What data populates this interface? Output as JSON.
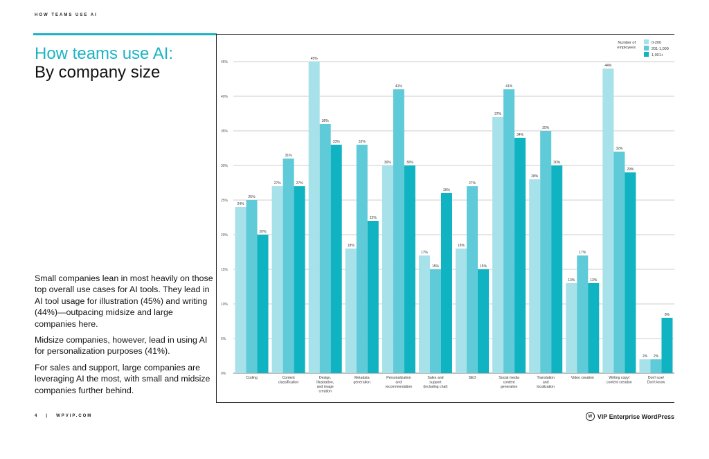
{
  "header": {
    "running_head": "HOW TEAMS USE AI"
  },
  "title": {
    "line1": "How teams use AI:",
    "line2": "By company size"
  },
  "body": {
    "paragraphs": [
      "Small companies lean in most heavily on those top overall use cases for AI tools. They lead in AI tool usage for illustration (45%) and writing (44%)—outpacing midsize and large companies here.",
      "Midsize companies, however, lead in using AI for personalization purposes (41%).",
      "For sales and support, large companies are leveraging AI the most, with small and midsize companies further behind."
    ]
  },
  "footer": {
    "page_number": "4",
    "separator": "|",
    "site": "WPVIP.COM",
    "brand": "VIP Enterprise WordPress"
  },
  "colors": {
    "accent": "#1bb3c4",
    "series": [
      "#a7e1ea",
      "#5fcad8",
      "#0fb3c1"
    ]
  },
  "chart_data": {
    "type": "bar",
    "title": "How teams use AI: By company size",
    "legend_title": "Number of employees",
    "legend_position": "top-right",
    "y_tick_labels": [
      "0%",
      "5%",
      "10%",
      "15%",
      "20%",
      "25%",
      "30%",
      "35%",
      "40%",
      "45%"
    ],
    "ylim": [
      0,
      45
    ],
    "grid": true,
    "categories": [
      [
        "Coding"
      ],
      [
        "Content",
        "classification"
      ],
      [
        "Design,",
        "illustration,",
        "and image",
        "creation"
      ],
      [
        "Metadata",
        "generation"
      ],
      [
        "Personalization",
        "and",
        "recommendation"
      ],
      [
        "Sales and",
        "support",
        "(including chat)"
      ],
      [
        "SEO"
      ],
      [
        "Social media",
        "content",
        "generation"
      ],
      [
        "Translation",
        "and",
        "localization"
      ],
      [
        "Video creation"
      ],
      [
        "Writing copy/",
        "content creation"
      ],
      [
        "Don't use/",
        "Don't know"
      ]
    ],
    "series": [
      {
        "name": "0-200",
        "values": [
          24,
          27,
          45,
          18,
          30,
          17,
          18,
          37,
          28,
          13,
          44,
          2
        ],
        "labels": [
          "24%",
          "27%",
          "45%",
          "18%",
          "30%",
          "17%",
          "18%",
          "37%",
          "28%",
          "13%",
          "44%",
          "2%"
        ]
      },
      {
        "name": "201-1,000",
        "values": [
          25,
          31,
          36,
          33,
          41,
          15,
          27,
          41,
          35,
          17,
          32,
          2
        ],
        "labels": [
          "25%",
          "31%",
          "36%",
          "33%",
          "41%",
          "15%",
          "27%",
          "41%",
          "35%",
          "17%",
          "32%",
          "2%"
        ]
      },
      {
        "name": "1,001+",
        "values": [
          20,
          27,
          33,
          22,
          30,
          26,
          15,
          34,
          30,
          13,
          29,
          8
        ],
        "labels": [
          "20%",
          "27%",
          "33%",
          "22%",
          "30%",
          "26%",
          "15%",
          "34%",
          "30%",
          "13%",
          "29%",
          "8%"
        ]
      }
    ]
  }
}
